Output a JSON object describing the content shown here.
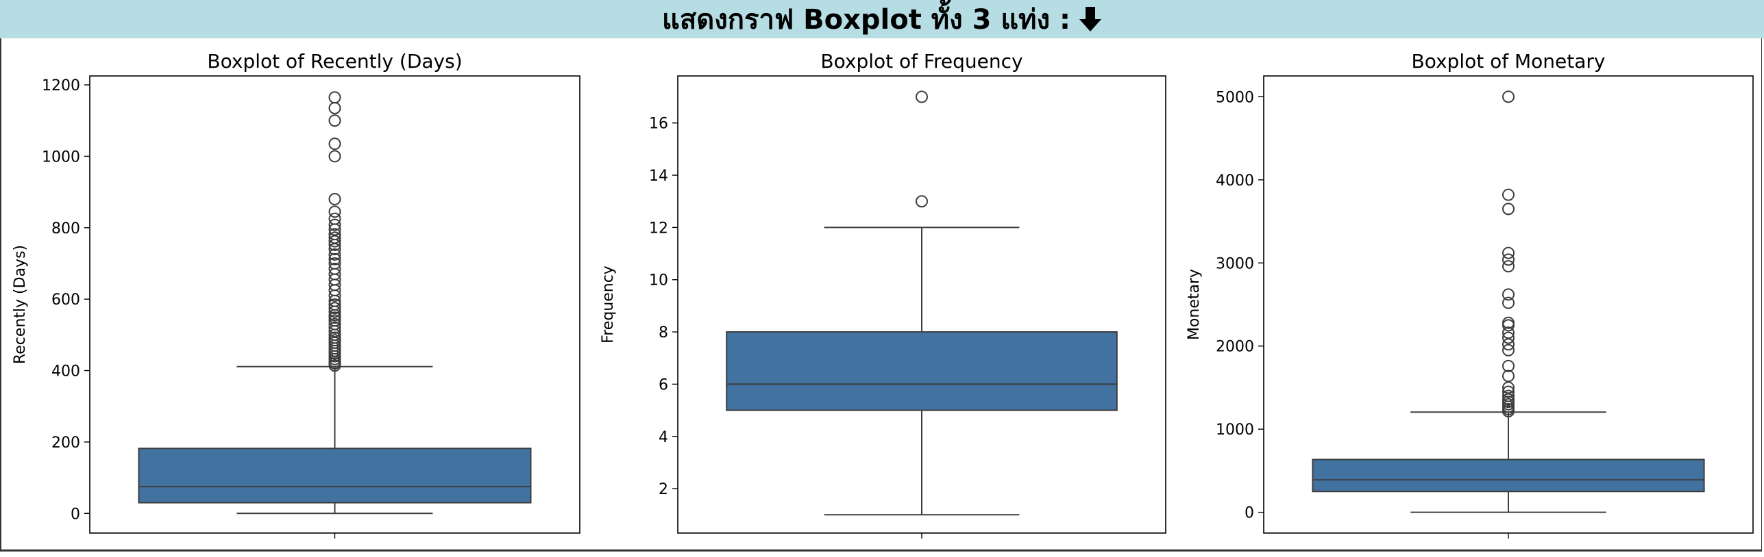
{
  "header": {
    "title": "แสดงกราฟ Boxplot ทั้ง 3 แท่ง :",
    "arrow_icon": "down-arrow-icon"
  },
  "colors": {
    "box_fill": "#4273a0",
    "line": "#3d3d3d",
    "banner_bg": "#b6dde3"
  },
  "chart_data": [
    {
      "type": "box",
      "title": "Boxplot of Recently (Days)",
      "ylabel": "Recently (Days)",
      "xlabel": "",
      "ylim": [
        -55,
        1225
      ],
      "yticks": [
        0,
        200,
        400,
        600,
        800,
        1000,
        1200
      ],
      "box": {
        "whisker_low": 0,
        "q1": 30,
        "median": 75,
        "q3": 182,
        "whisker_high": 411
      },
      "outliers": [
        414,
        420,
        425,
        432,
        440,
        448,
        455,
        462,
        470,
        478,
        485,
        492,
        500,
        510,
        520,
        530,
        540,
        548,
        555,
        565,
        575,
        585,
        595,
        610,
        625,
        640,
        655,
        670,
        685,
        700,
        712,
        725,
        740,
        752,
        762,
        772,
        782,
        795,
        808,
        825,
        845,
        880,
        1000,
        1035,
        1100,
        1135,
        1165
      ]
    },
    {
      "type": "box",
      "title": "Boxplot of Frequency",
      "ylabel": "Frequency",
      "xlabel": "",
      "ylim": [
        0.3,
        17.8
      ],
      "yticks": [
        2,
        4,
        6,
        8,
        10,
        12,
        14,
        16
      ],
      "box": {
        "whisker_low": 1,
        "q1": 5,
        "median": 6,
        "q3": 8,
        "whisker_high": 12
      },
      "outliers": [
        13,
        17
      ]
    },
    {
      "type": "box",
      "title": "Boxplot of Monetary",
      "ylabel": "Monetary",
      "xlabel": "",
      "ylim": [
        -250,
        5250
      ],
      "yticks": [
        0,
        1000,
        2000,
        3000,
        4000,
        5000
      ],
      "box": {
        "whisker_low": 0,
        "q1": 250,
        "median": 390,
        "q3": 635,
        "whisker_high": 1205
      },
      "outliers": [
        1215,
        1240,
        1270,
        1300,
        1330,
        1360,
        1400,
        1450,
        1500,
        1640,
        1760,
        1950,
        2020,
        2100,
        2160,
        2250,
        2280,
        2520,
        2620,
        2960,
        3040,
        3120,
        3650,
        3820,
        5000
      ]
    }
  ]
}
